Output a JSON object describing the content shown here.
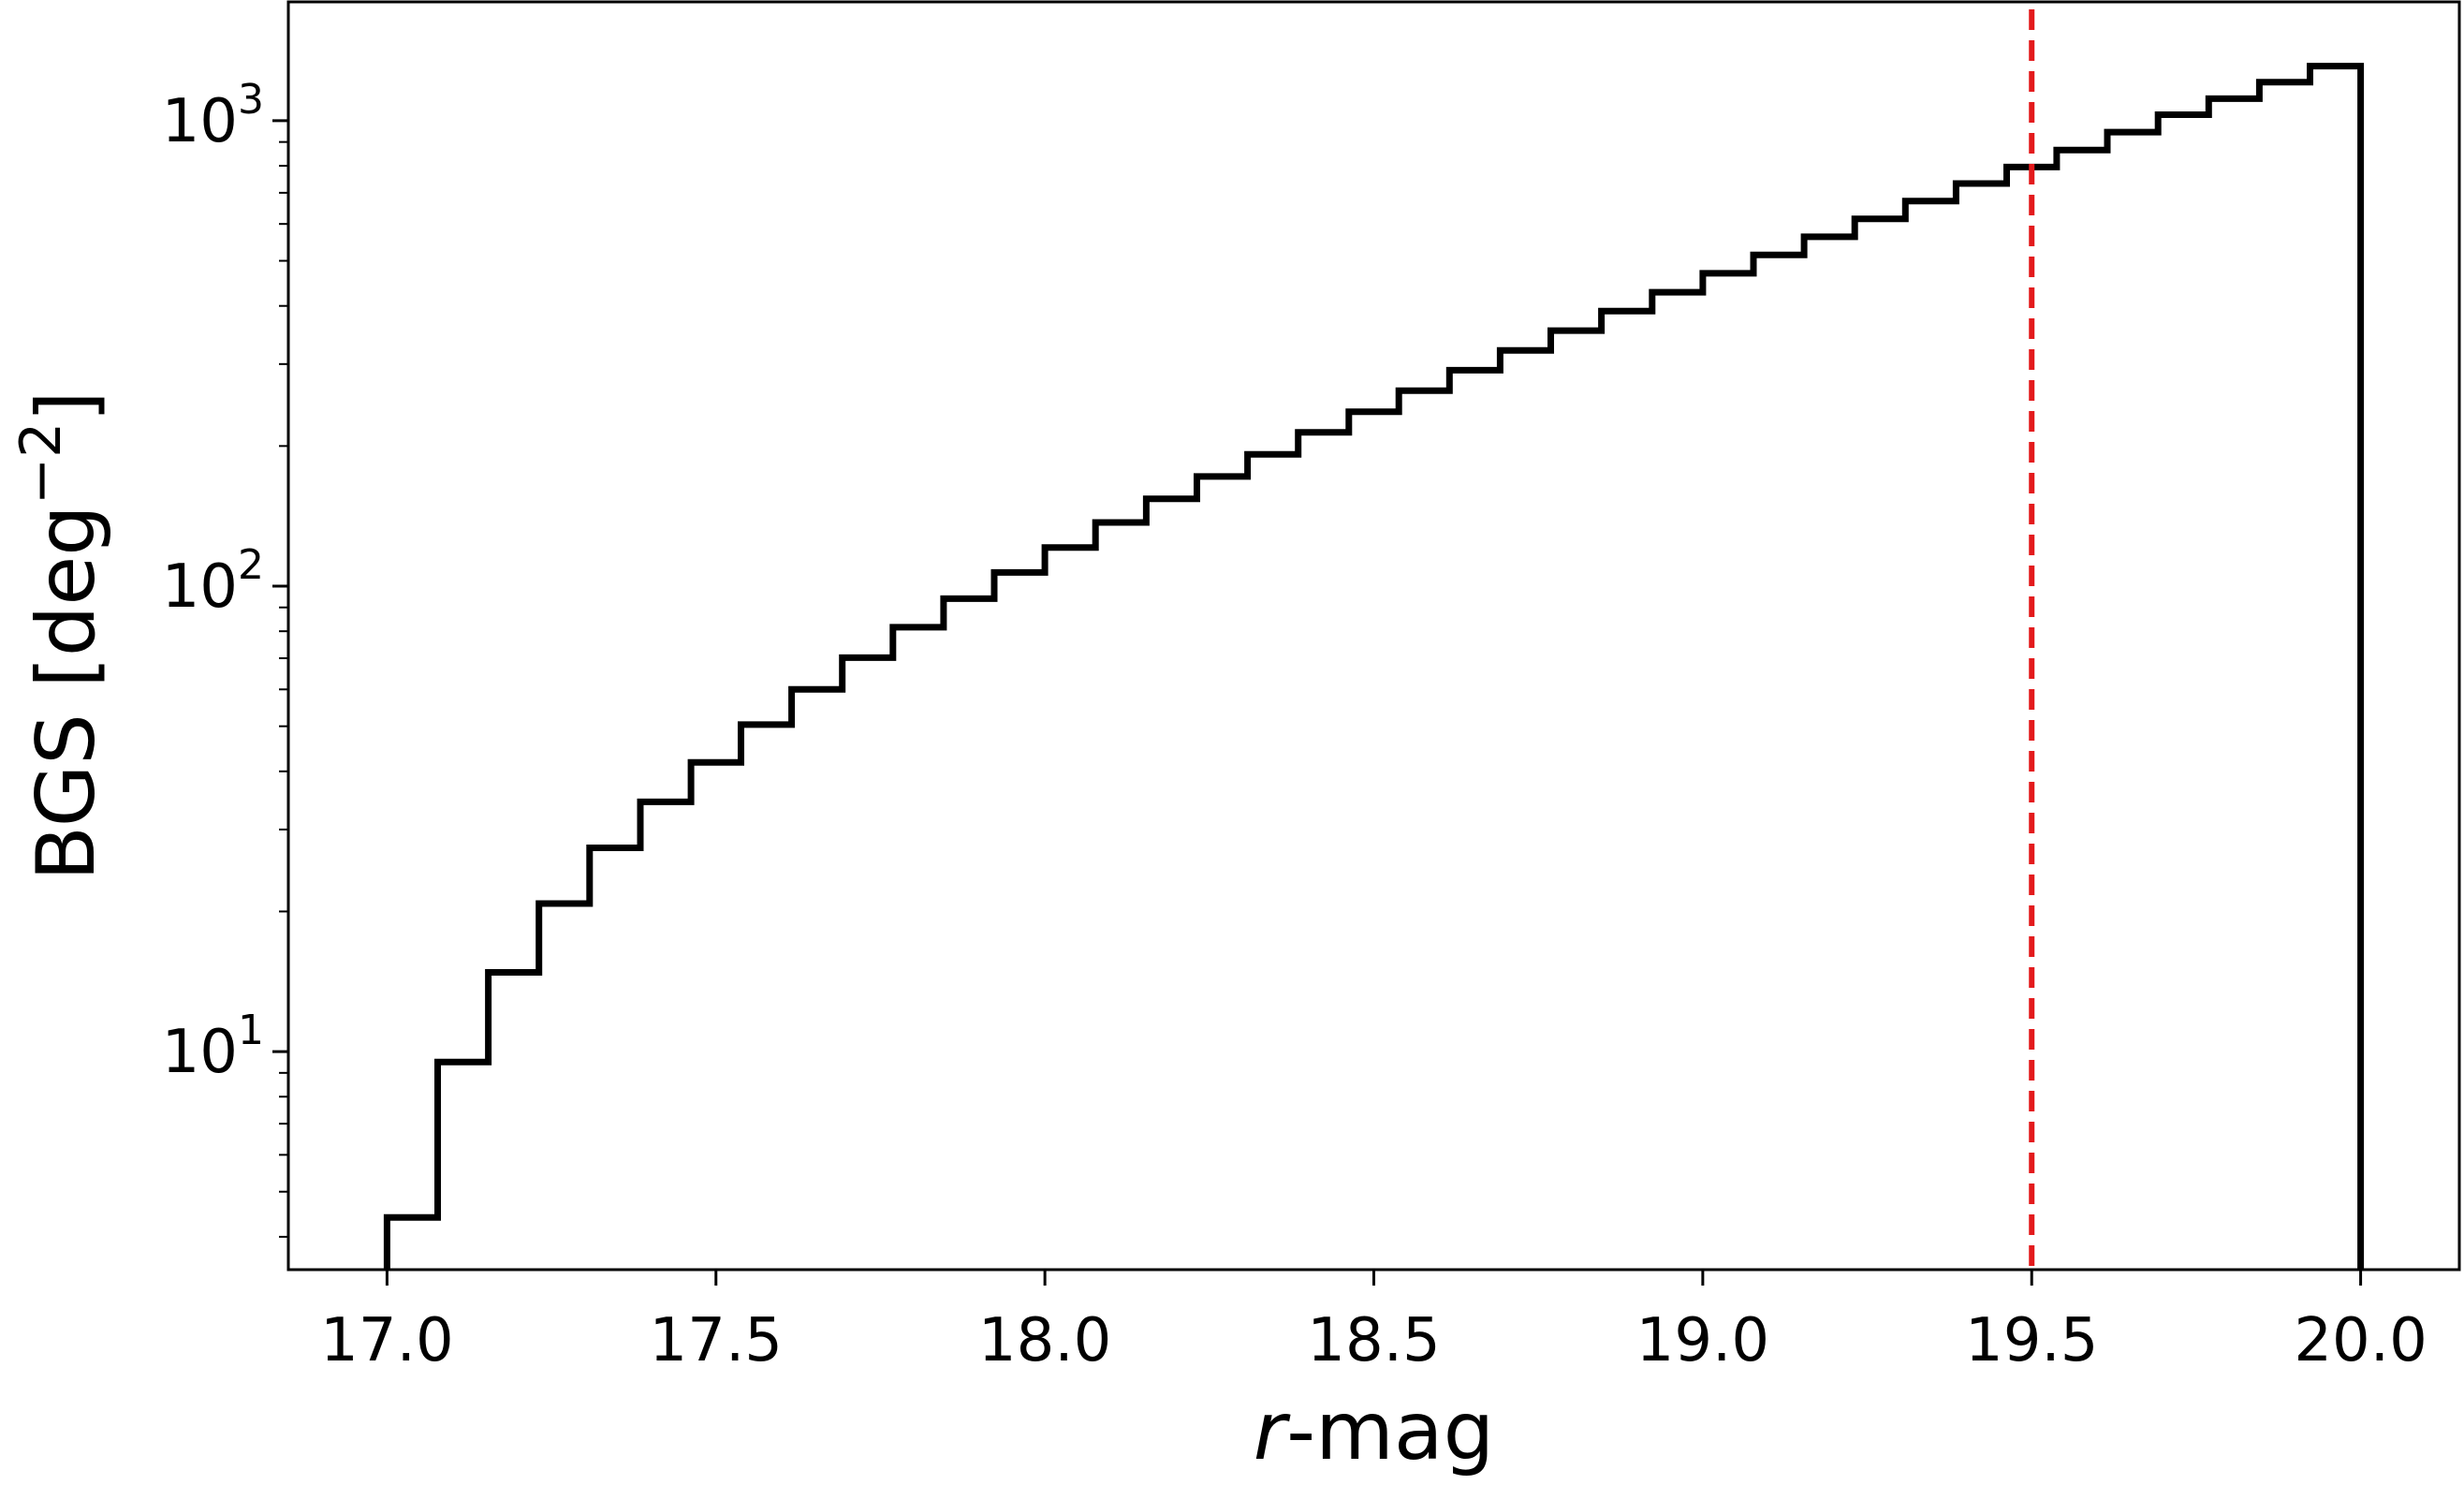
{
  "chart_data": {
    "type": "step-histogram",
    "xlabel_italic": "r",
    "xlabel_rest": "-mag",
    "ylabel": "BGS [deg",
    "ylabel_exponent": "−2",
    "ylabel_close": "]",
    "xlim": [
      16.85,
      20.15
    ],
    "ylim": [
      3.4,
      1800
    ],
    "yscale": "log",
    "grid": false,
    "x_ticks": [
      {
        "value": 17.0,
        "label": "17.0"
      },
      {
        "value": 17.5,
        "label": "17.5"
      },
      {
        "value": 18.0,
        "label": "18.0"
      },
      {
        "value": 18.5,
        "label": "18.5"
      },
      {
        "value": 19.0,
        "label": "19.0"
      },
      {
        "value": 19.5,
        "label": "19.5"
      },
      {
        "value": 20.0,
        "label": "20.0"
      }
    ],
    "y_ticks": [
      {
        "value": 10,
        "base": "10",
        "exponent": "1"
      },
      {
        "value": 100,
        "base": "10",
        "exponent": "2"
      },
      {
        "value": 1000,
        "base": "10",
        "exponent": "3"
      }
    ],
    "bin_edges": [
      17.0,
      17.077,
      17.154,
      17.231,
      17.308,
      17.385,
      17.462,
      17.538,
      17.615,
      17.692,
      17.769,
      17.846,
      17.923,
      18.0,
      18.077,
      18.154,
      18.231,
      18.308,
      18.385,
      18.462,
      18.538,
      18.615,
      18.692,
      18.769,
      18.846,
      18.923,
      19.0,
      19.077,
      19.154,
      19.231,
      19.308,
      19.385,
      19.462,
      19.538,
      19.615,
      19.692,
      19.769,
      19.846,
      19.923,
      20.0
    ],
    "counts": [
      4.4,
      9.5,
      14.8,
      20.8,
      27.4,
      34.4,
      41.8,
      50.4,
      60.0,
      70.2,
      81.6,
      94.0,
      107.0,
      121.0,
      137.0,
      154.0,
      172.0,
      192.0,
      214.0,
      237.0,
      263.0,
      291.0,
      321.0,
      354.0,
      390.0,
      428.0,
      470.0,
      515.0,
      563.0,
      615.0,
      672.0,
      733.0,
      795.0,
      865.0,
      945.0,
      1030.0,
      1115.0,
      1210.0,
      1310.0
    ],
    "line_color": "#000000",
    "reference_line": {
      "x": 19.5,
      "color": "#e31a1c",
      "style": "dashed"
    }
  }
}
